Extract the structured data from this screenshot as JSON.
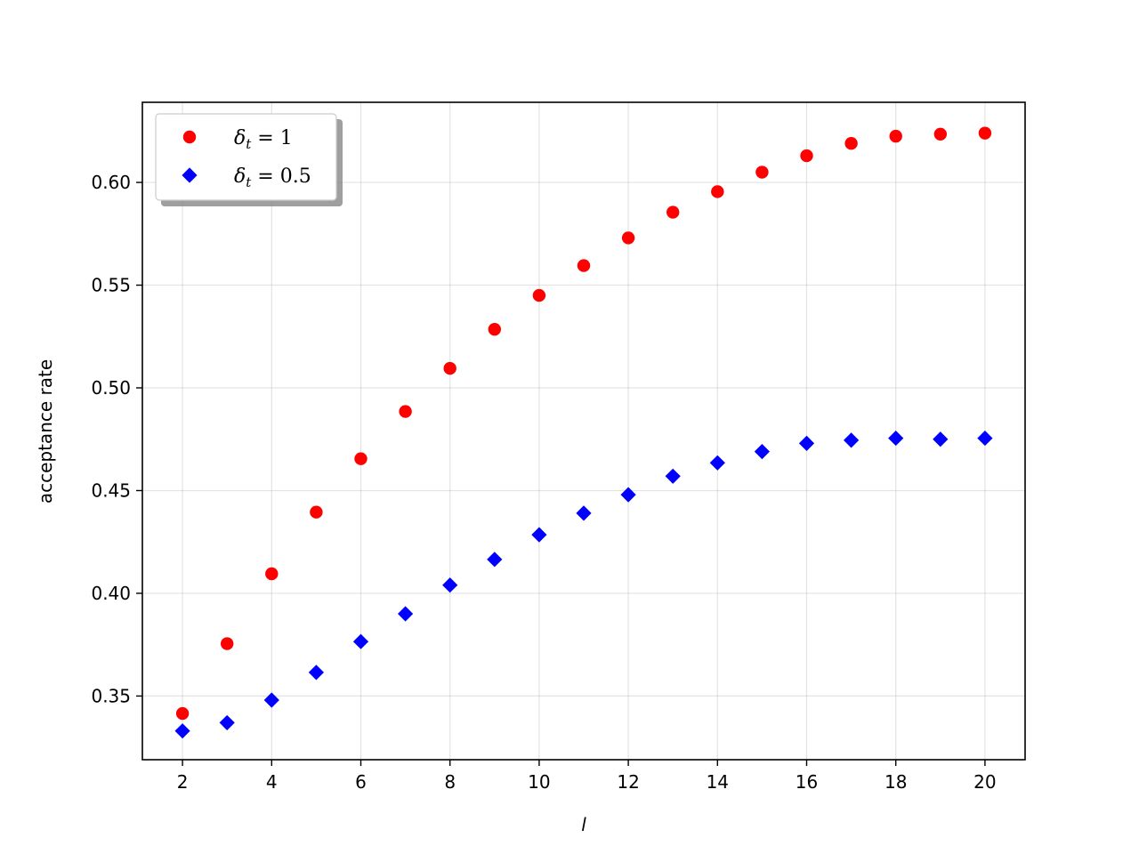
{
  "chart_data": {
    "type": "scatter",
    "xlabel": "l",
    "ylabel": "acceptance rate",
    "xlim": [
      1.1,
      20.9
    ],
    "ylim": [
      0.319,
      0.639
    ],
    "x_ticks": [
      2,
      4,
      6,
      8,
      10,
      12,
      14,
      16,
      18,
      20
    ],
    "x_tick_labels": [
      "2",
      "4",
      "6",
      "8",
      "10",
      "12",
      "14",
      "16",
      "18",
      "20"
    ],
    "y_ticks": [
      0.35,
      0.4,
      0.45,
      0.5,
      0.55,
      0.6
    ],
    "y_tick_labels": [
      "0.35",
      "0.40",
      "0.45",
      "0.50",
      "0.55",
      "0.60"
    ],
    "grid": true,
    "legend_position": "upper-left",
    "x": [
      2,
      3,
      4,
      5,
      6,
      7,
      8,
      9,
      10,
      11,
      12,
      13,
      14,
      15,
      16,
      17,
      18,
      19,
      20
    ],
    "series": [
      {
        "name": "δt = 1",
        "name_main": "δ",
        "name_sub": "t",
        "name_rest": " = 1",
        "color": "#ff0000",
        "marker": "circle",
        "values": [
          0.3415,
          0.3755,
          0.4095,
          0.4395,
          0.4655,
          0.4885,
          0.5095,
          0.5285,
          0.545,
          0.5595,
          0.573,
          0.5855,
          0.5955,
          0.605,
          0.613,
          0.619,
          0.6225,
          0.6235,
          0.624
        ]
      },
      {
        "name": "δt = 0.5",
        "name_main": "δ",
        "name_sub": "t",
        "name_rest": " = 0.5",
        "color": "#0000ff",
        "marker": "diamond",
        "values": [
          0.333,
          0.337,
          0.348,
          0.3615,
          0.3765,
          0.39,
          0.404,
          0.4165,
          0.4285,
          0.439,
          0.448,
          0.457,
          0.4635,
          0.469,
          0.473,
          0.4745,
          0.4755,
          0.475,
          0.4755
        ]
      }
    ]
  }
}
